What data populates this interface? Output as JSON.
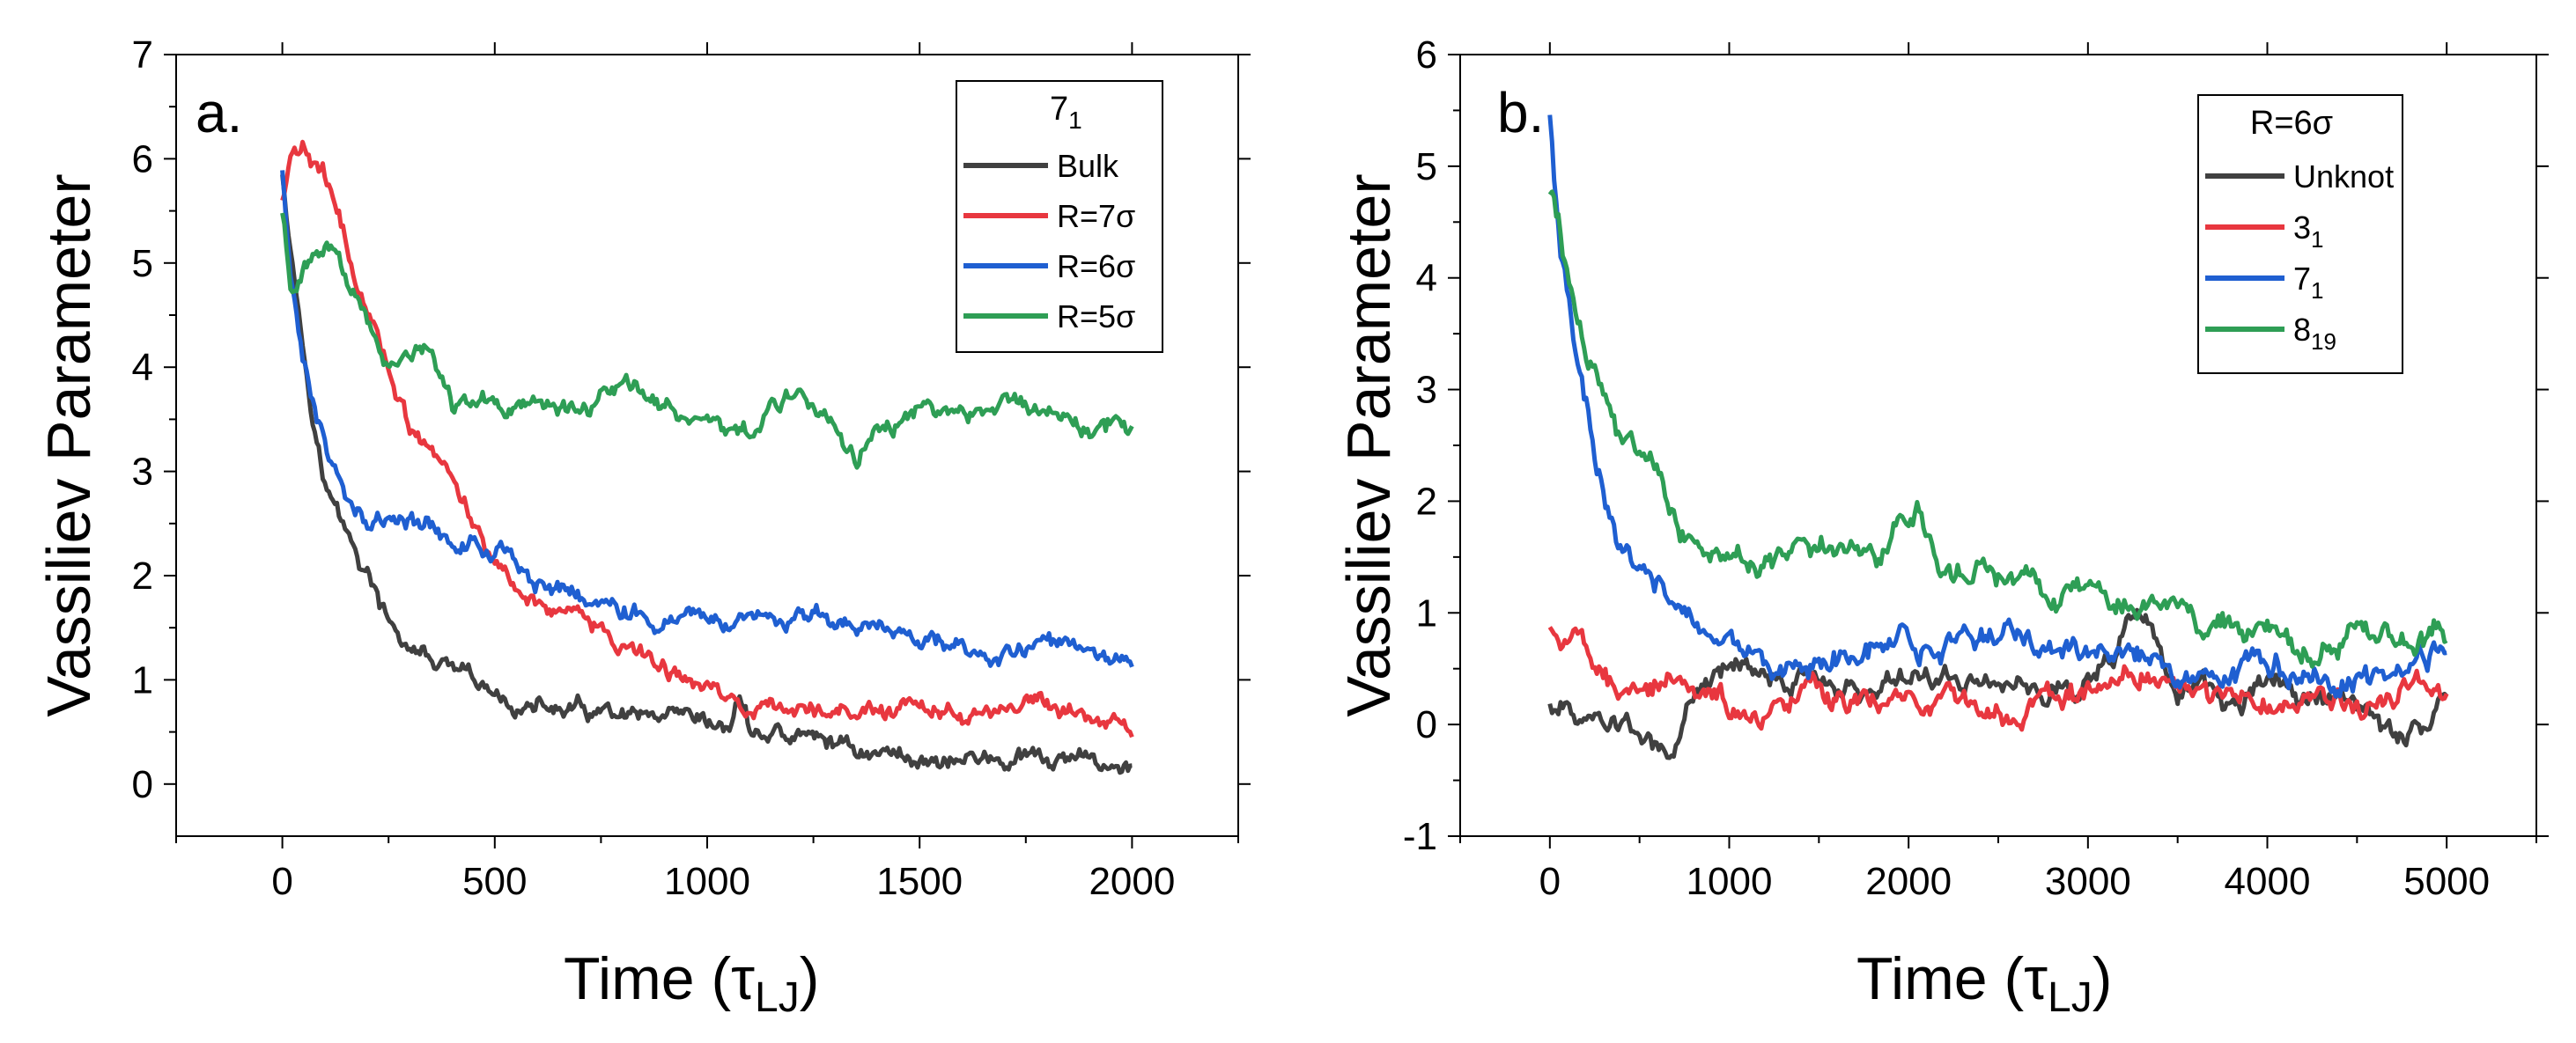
{
  "chart_data": [
    {
      "type": "line",
      "panel_label": "a.",
      "xlabel": "Time (τLJ)",
      "ylabel": "Vassiliev Parameter",
      "xlim": [
        -250,
        2250
      ],
      "ylim": [
        -0.5,
        7
      ],
      "xticks": [
        0,
        500,
        1000,
        1500,
        2000
      ],
      "yticks": [
        0,
        1,
        2,
        3,
        4,
        5,
        6,
        7
      ],
      "legend": {
        "title_main": "7",
        "title_sub": "1",
        "placement": "top-right",
        "labels": [
          "Bulk",
          "R=7σ",
          "R=6σ",
          "R=5σ"
        ]
      },
      "series": [
        {
          "name": "Bulk",
          "color": "#404040",
          "x": [
            0,
            25,
            50,
            75,
            100,
            150,
            200,
            250,
            300,
            400,
            500,
            600,
            700,
            800,
            900,
            1000,
            1050,
            1075,
            1100,
            1200,
            1300,
            1400,
            1500,
            1600,
            1700,
            1800,
            1900,
            2000
          ],
          "y": [
            5.9,
            5.0,
            4.2,
            3.5,
            2.9,
            2.4,
            2.0,
            1.5,
            1.3,
            1.05,
            0.8,
            0.72,
            0.68,
            0.6,
            0.55,
            0.5,
            0.5,
            0.85,
            0.5,
            0.45,
            0.4,
            0.3,
            0.25,
            0.25,
            0.22,
            0.2,
            0.2,
            0.18
          ]
        },
        {
          "name": "R=7σ",
          "color": "#e8373f",
          "x": [
            0,
            20,
            50,
            100,
            150,
            200,
            250,
            300,
            400,
            500,
            600,
            700,
            800,
            900,
            1000,
            1100,
            1200,
            1300,
            1400,
            1500,
            1600,
            1700,
            1800,
            1900,
            2000
          ],
          "y": [
            5.6,
            6.0,
            6.1,
            5.8,
            5.2,
            4.5,
            4.0,
            3.4,
            2.9,
            2.1,
            1.75,
            1.6,
            1.35,
            1.1,
            0.95,
            0.7,
            0.7,
            0.72,
            0.75,
            0.68,
            0.65,
            0.7,
            0.72,
            0.6,
            0.52
          ]
        },
        {
          "name": "R=6σ",
          "color": "#1f5fd1",
          "x": [
            0,
            20,
            50,
            80,
            120,
            150,
            200,
            300,
            400,
            500,
            600,
            700,
            800,
            900,
            1000,
            1100,
            1200,
            1300,
            1400,
            1500,
            1600,
            1700,
            1800,
            1900,
            2000
          ],
          "y": [
            5.9,
            4.8,
            4.0,
            3.5,
            3.0,
            2.8,
            2.6,
            2.5,
            2.4,
            2.2,
            2.0,
            1.85,
            1.7,
            1.65,
            1.6,
            1.55,
            1.55,
            1.5,
            1.45,
            1.4,
            1.35,
            1.3,
            1.4,
            1.3,
            1.15
          ]
        },
        {
          "name": "R=5σ",
          "color": "#2e9e55",
          "x": [
            0,
            20,
            50,
            100,
            150,
            200,
            250,
            300,
            350,
            400,
            500,
            600,
            700,
            800,
            900,
            1000,
            1100,
            1200,
            1300,
            1350,
            1400,
            1500,
            1600,
            1700,
            1800,
            1900,
            2000
          ],
          "y": [
            5.5,
            4.8,
            5.0,
            5.1,
            4.9,
            4.5,
            4.1,
            4.2,
            4.3,
            3.7,
            3.7,
            3.7,
            3.6,
            3.8,
            3.7,
            3.5,
            3.4,
            3.7,
            3.4,
            3.1,
            3.4,
            3.6,
            3.5,
            3.7,
            3.6,
            3.4,
            3.5
          ]
        }
      ]
    },
    {
      "type": "line",
      "panel_label": "b.",
      "xlabel": "Time (τLJ)",
      "ylabel": "Vassiliev Parameter",
      "xlim": [
        -500,
        5500
      ],
      "ylim": [
        -1,
        6
      ],
      "xticks": [
        0,
        1000,
        2000,
        3000,
        4000,
        5000
      ],
      "yticks": [
        -1,
        0,
        1,
        2,
        3,
        4,
        5,
        6
      ],
      "legend": {
        "title_main": "R=6σ",
        "title_sub": "",
        "placement": "top-right",
        "labels": [
          "Unknot",
          "31",
          "71",
          "819"
        ]
      },
      "series": [
        {
          "name": "Unknot",
          "color": "#404040",
          "x": [
            0,
            200,
            400,
            600,
            650,
            800,
            1000,
            1200,
            1500,
            1800,
            2000,
            2200,
            2500,
            2800,
            3000,
            3300,
            3500,
            3800,
            4000,
            4200,
            4500,
            4700,
            5000
          ],
          "y": [
            0.2,
            0.1,
            0.0,
            -0.2,
            -0.3,
            0.2,
            0.6,
            0.5,
            0.4,
            0.3,
            0.5,
            0.4,
            0.4,
            0.3,
            0.4,
            1.0,
            0.3,
            0.2,
            0.3,
            0.3,
            0.2,
            -0.1,
            0.2
          ]
        },
        {
          "name": "31",
          "color": "#e8373f",
          "x": [
            0,
            100,
            200,
            300,
            500,
            700,
            900,
            1000,
            1200,
            1500,
            1800,
            2000,
            2300,
            2600,
            3000,
            3300,
            3600,
            4000,
            4300,
            4600,
            4800,
            5000
          ],
          "y": [
            0.9,
            0.8,
            0.6,
            0.5,
            0.2,
            0.5,
            0.3,
            0.2,
            0.0,
            0.3,
            0.2,
            0.3,
            0.1,
            0.2,
            0.3,
            0.4,
            0.3,
            0.1,
            0.3,
            0.1,
            0.4,
            0.2
          ]
        },
        {
          "name": "71",
          "color": "#1f5fd1",
          "x": [
            0,
            30,
            60,
            100,
            150,
            200,
            250,
            300,
            400,
            500,
            600,
            700,
            800,
            900,
            1000,
            1200,
            1500,
            1800,
            2000,
            2300,
            2500,
            2800,
            3000,
            3300,
            3500,
            3800,
            4000,
            4300,
            4500,
            4800,
            5000
          ],
          "y": [
            5.5,
            4.8,
            4.2,
            3.8,
            3.2,
            2.8,
            2.3,
            2.0,
            1.5,
            1.4,
            1.25,
            1.0,
            0.8,
            0.75,
            0.7,
            0.6,
            0.6,
            0.7,
            0.7,
            0.75,
            0.8,
            0.7,
            0.6,
            0.6,
            0.5,
            0.5,
            0.5,
            0.45,
            0.5,
            0.5,
            0.65
          ]
        },
        {
          "name": "819",
          "color": "#2e9e55",
          "x": [
            0,
            50,
            100,
            200,
            300,
            400,
            500,
            600,
            700,
            800,
            900,
            1000,
            1200,
            1500,
            1800,
            2000,
            2050,
            2200,
            2500,
            2800,
            3000,
            3300,
            3500,
            3800,
            4000,
            4300,
            4500,
            4800,
            5000
          ],
          "y": [
            4.8,
            4.5,
            4.0,
            3.4,
            3.0,
            2.6,
            2.5,
            2.3,
            1.9,
            1.6,
            1.5,
            1.4,
            1.4,
            1.6,
            1.5,
            1.8,
            1.9,
            1.3,
            1.3,
            1.2,
            1.15,
            1.0,
            1.0,
            0.9,
            0.8,
            0.7,
            0.7,
            0.75,
            0.85
          ]
        }
      ]
    }
  ]
}
